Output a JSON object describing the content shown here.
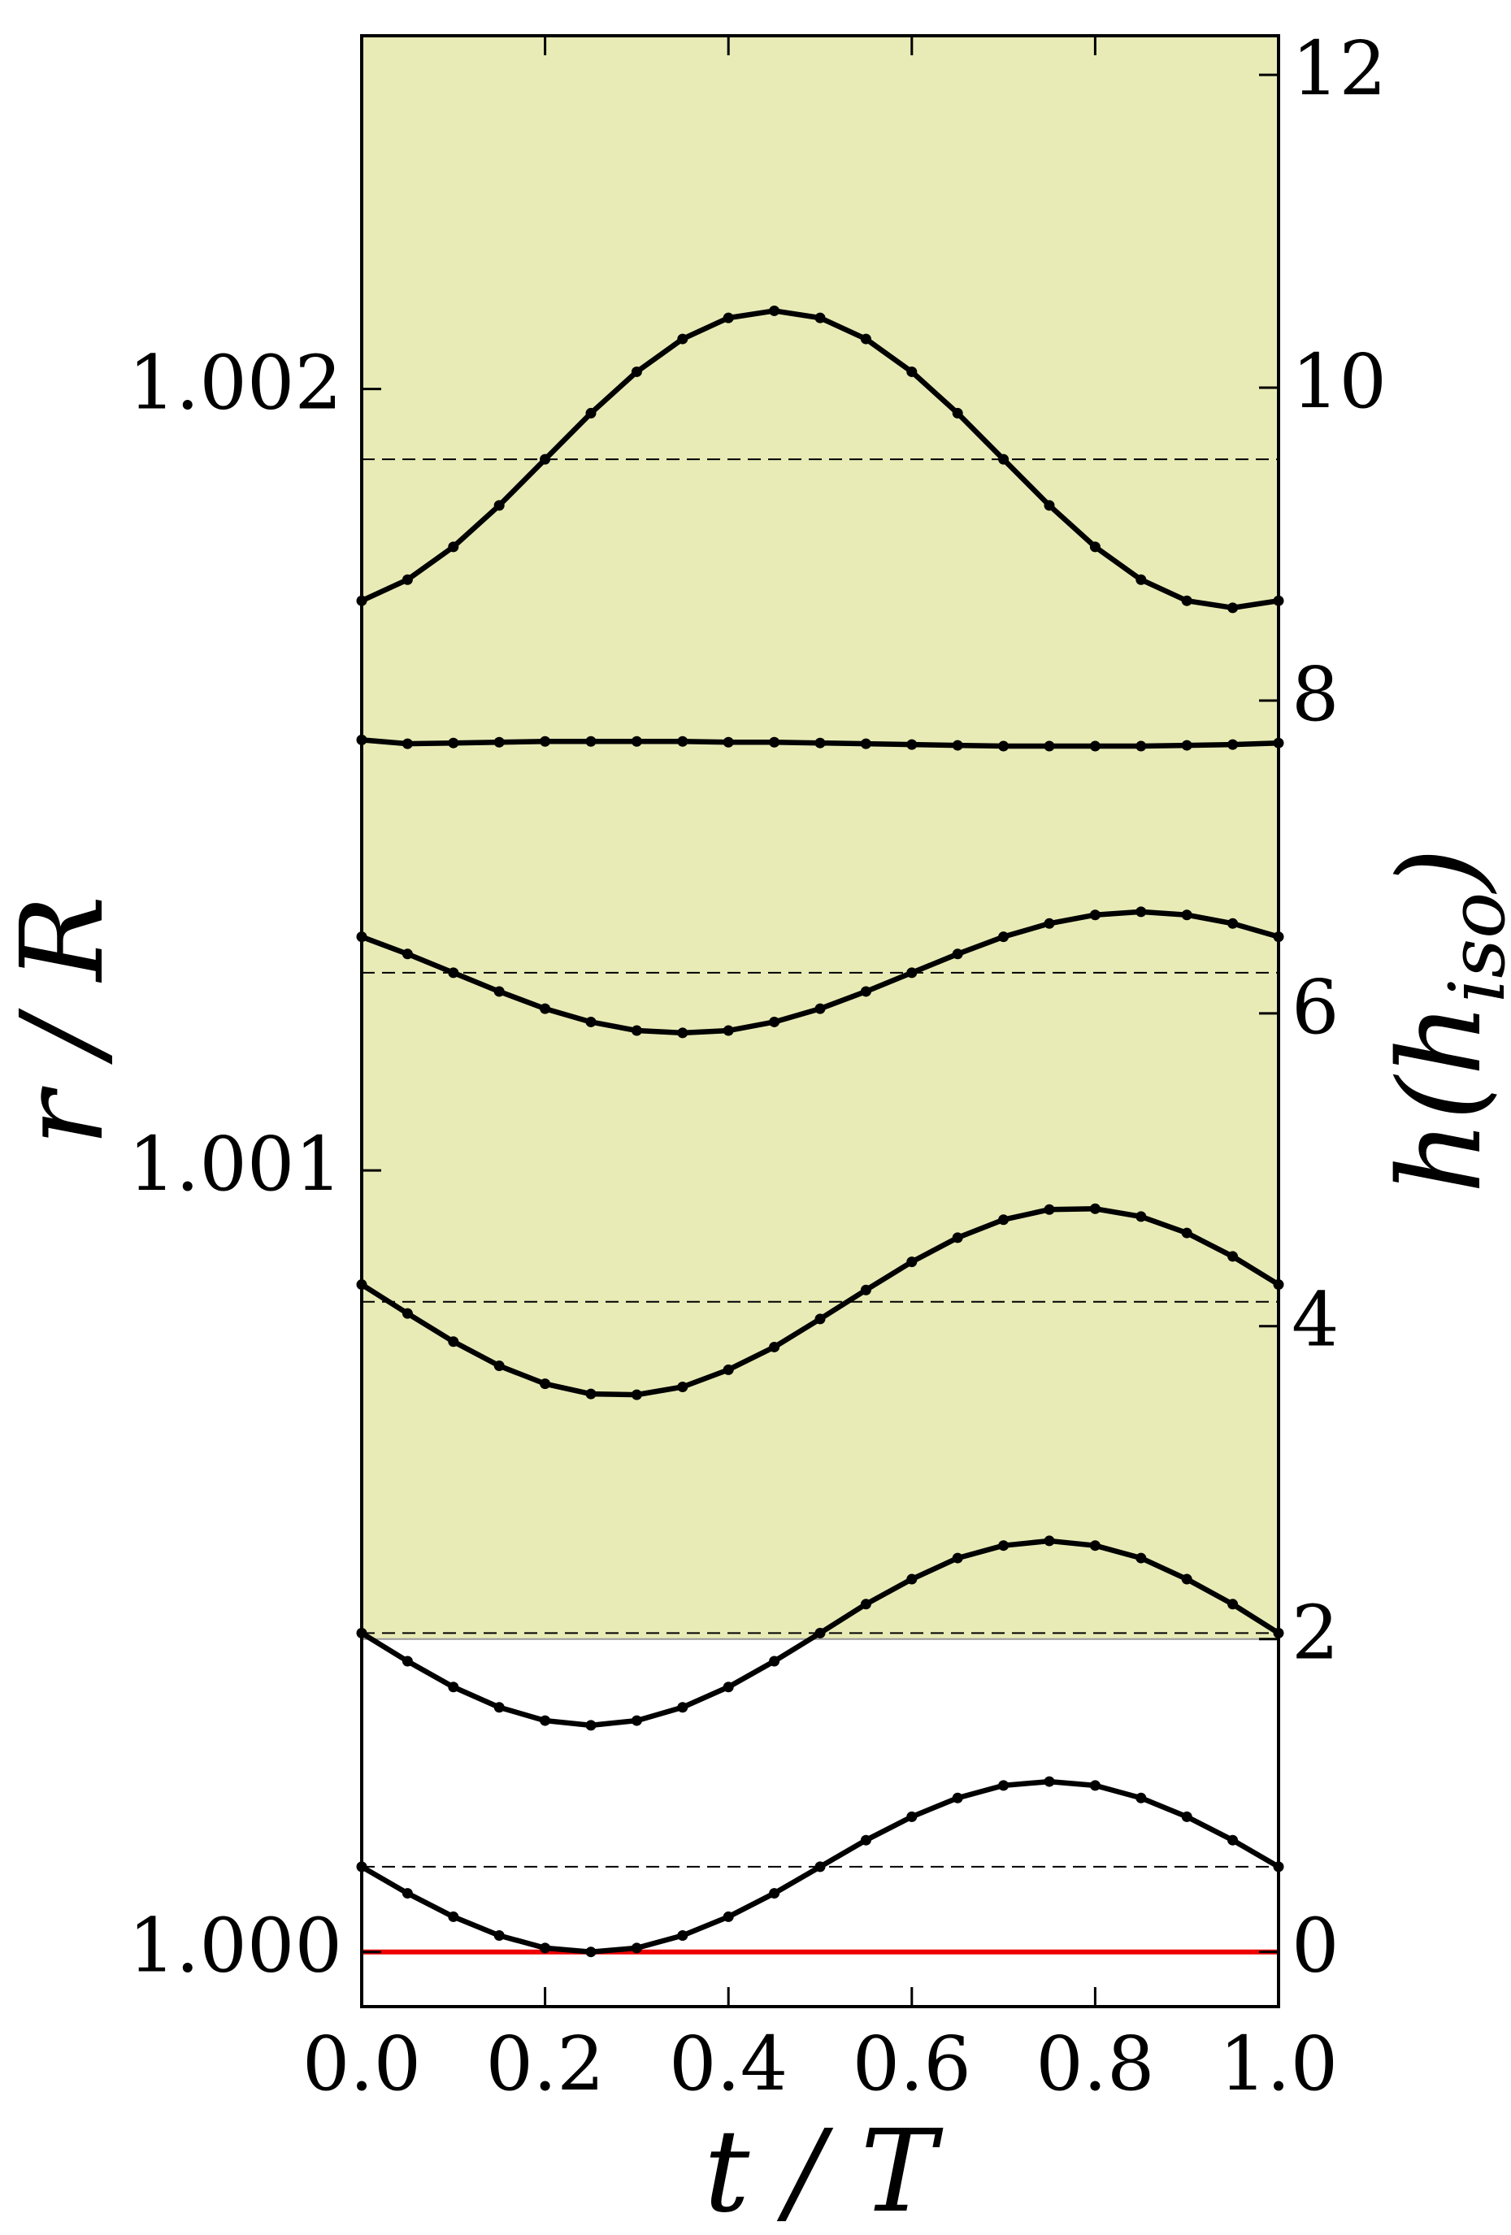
{
  "chart_data": {
    "type": "line",
    "xlabel": "t / T",
    "ylabel": "r / R",
    "y2label": [
      "h(h",
      "iso",
      ")"
    ],
    "x": [
      0.0,
      0.05,
      0.1,
      0.15,
      0.2,
      0.25,
      0.3,
      0.35,
      0.4,
      0.45,
      0.5,
      0.55,
      0.6,
      0.65,
      0.7,
      0.75,
      0.8,
      0.85,
      0.9,
      0.95,
      1.0
    ],
    "series": [
      {
        "color": "#000000",
        "values": [
          1.000109,
          1.000075,
          1.000045,
          1.000021,
          1.000005,
          1.0,
          1.000005,
          1.000021,
          1.000045,
          1.000075,
          1.000109,
          1.000143,
          1.000173,
          1.000197,
          1.000213,
          1.000218,
          1.000213,
          1.000197,
          1.000173,
          1.000143,
          1.000109
        ]
      },
      {
        "color": "#000000",
        "values": [
          1.000408,
          1.000372,
          1.000339,
          1.000313,
          1.000296,
          1.00029,
          1.000296,
          1.000313,
          1.000339,
          1.000372,
          1.000408,
          1.000445,
          1.000477,
          1.000504,
          1.00052,
          1.000526,
          1.00052,
          1.000504,
          1.000477,
          1.000445,
          1.000408
        ]
      },
      {
        "color": "#000000",
        "values": [
          1.000854,
          1.000817,
          1.000781,
          1.00075,
          1.000727,
          1.000714,
          1.000713,
          1.000723,
          1.000745,
          1.000774,
          1.00081,
          1.000847,
          1.000883,
          1.000914,
          1.000937,
          1.00095,
          1.000951,
          1.000941,
          1.00092,
          1.00089,
          1.000854
        ]
      },
      {
        "color": "#000000",
        "values": [
          1.001299,
          1.001277,
          1.001253,
          1.001229,
          1.001207,
          1.00119,
          1.001179,
          1.001176,
          1.001179,
          1.00119,
          1.001207,
          1.001229,
          1.001253,
          1.001277,
          1.001299,
          1.001316,
          1.001327,
          1.001331,
          1.001327,
          1.001316,
          1.001299
        ]
      },
      {
        "color": "#000000",
        "values": [
          1.001551,
          1.001546,
          1.001547,
          1.001548,
          1.001549,
          1.001549,
          1.001549,
          1.001549,
          1.001548,
          1.001548,
          1.001547,
          1.001546,
          1.001545,
          1.001544,
          1.001543,
          1.001543,
          1.001543,
          1.001543,
          1.001544,
          1.001545,
          1.001547
        ]
      },
      {
        "color": "#000000",
        "values": [
          1.001729,
          1.001756,
          1.001798,
          1.001851,
          1.00191,
          1.001969,
          1.002022,
          1.002064,
          1.002091,
          1.0021,
          1.002091,
          1.002064,
          1.002022,
          1.001969,
          1.00191,
          1.001851,
          1.001798,
          1.001756,
          1.001729,
          1.00172,
          1.001729
        ]
      }
    ],
    "reference_lines": [
      1.000109,
      1.000408,
      1.000832,
      1.001253,
      1.00191
    ],
    "reference_color": "#000000",
    "baseline": {
      "value": 1.0,
      "color": "#ee0000"
    },
    "shade": {
      "y2_from": 2,
      "color": "#e8ebb5"
    },
    "xlim": [
      0.0,
      1.0
    ],
    "xticks": [
      {
        "value": 0.0,
        "label": "0.0"
      },
      {
        "value": 0.2,
        "label": "0.2"
      },
      {
        "value": 0.4,
        "label": "0.4"
      },
      {
        "value": 0.6,
        "label": "0.6"
      },
      {
        "value": 0.8,
        "label": "0.8"
      },
      {
        "value": 1.0,
        "label": "1.0"
      }
    ],
    "ylim": [
      0.99993,
      1.002452
    ],
    "yticks": [
      {
        "value": 1.0,
        "label": "1.000"
      },
      {
        "value": 1.001,
        "label": "1.001"
      },
      {
        "value": 1.002,
        "label": "1.002"
      }
    ],
    "y2lim": [
      -0.35,
      12.25
    ],
    "y2ticks": [
      0,
      2,
      4,
      6,
      8,
      10,
      12
    ]
  }
}
